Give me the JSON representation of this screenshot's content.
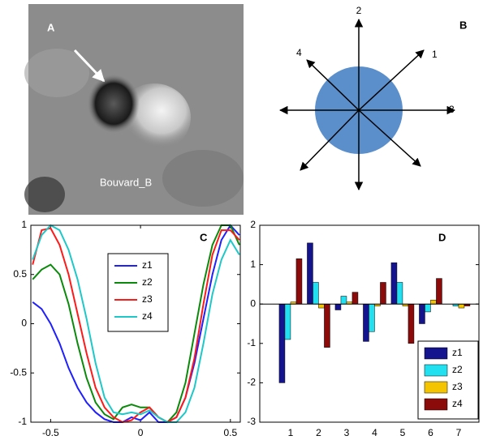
{
  "panel_a": {
    "label": "A",
    "caption": "Bouvard_B"
  },
  "panel_b": {
    "label": "B",
    "directions": [
      "1",
      "2",
      "3",
      "4"
    ]
  },
  "chart_data": [
    {
      "type": "line",
      "label": "C",
      "x": [
        -0.6,
        -0.55,
        -0.5,
        -0.45,
        -0.4,
        -0.35,
        -0.3,
        -0.25,
        -0.2,
        -0.15,
        -0.1,
        -0.05,
        0,
        0.05,
        0.1,
        0.15,
        0.2,
        0.25,
        0.3,
        0.35,
        0.4,
        0.45,
        0.5,
        0.55
      ],
      "series": [
        {
          "name": "z1",
          "color": "#1f1fff",
          "values": [
            0.22,
            0.15,
            0.0,
            -0.2,
            -0.45,
            -0.65,
            -0.8,
            -0.9,
            -0.97,
            -1,
            -1,
            -0.95,
            -0.98,
            -0.9,
            -1,
            -1,
            -0.95,
            -0.75,
            -0.4,
            0.05,
            0.5,
            0.85,
            1,
            0.9
          ]
        },
        {
          "name": "z2",
          "color": "#0a8a0a",
          "values": [
            0.45,
            0.55,
            0.6,
            0.5,
            0.2,
            -0.2,
            -0.55,
            -0.8,
            -0.92,
            -0.97,
            -0.85,
            -0.82,
            -0.85,
            -0.85,
            -0.95,
            -1,
            -0.9,
            -0.6,
            -0.1,
            0.4,
            0.8,
            1,
            1,
            0.8
          ]
        },
        {
          "name": "z3",
          "color": "#ff1a1a",
          "values": [
            0.6,
            0.95,
            0.97,
            0.8,
            0.5,
            0.1,
            -0.3,
            -0.65,
            -0.85,
            -0.95,
            -1,
            -0.98,
            -0.9,
            -0.85,
            -0.95,
            -1,
            -0.95,
            -0.75,
            -0.35,
            0.2,
            0.7,
            0.95,
            0.95,
            0.85
          ]
        },
        {
          "name": "z4",
          "color": "#1fc8c8",
          "values": [
            0.65,
            0.9,
            1,
            0.95,
            0.75,
            0.45,
            0.05,
            -0.4,
            -0.75,
            -0.9,
            -0.92,
            -0.9,
            -0.92,
            -0.88,
            -0.95,
            -1,
            -1,
            -0.9,
            -0.65,
            -0.2,
            0.3,
            0.65,
            0.85,
            0.7
          ]
        }
      ],
      "xlim": [
        -0.61,
        0.555
      ],
      "xticks": [
        -0.5,
        0,
        0.5
      ],
      "ylim": [
        -1,
        1
      ],
      "yticks": [
        -1,
        -0.5,
        0,
        0.5,
        1
      ]
    },
    {
      "type": "bar",
      "label": "D",
      "categories": [
        "1",
        "2",
        "3",
        "4",
        "5",
        "6",
        "7"
      ],
      "series": [
        {
          "name": "z1",
          "color": "#14148f",
          "values": [
            -2.0,
            1.55,
            -0.15,
            -0.95,
            1.05,
            -0.5,
            0
          ]
        },
        {
          "name": "z2",
          "color": "#22e0f0",
          "values": [
            -0.9,
            0.55,
            0.2,
            -0.7,
            0.55,
            -0.2,
            -0.05
          ]
        },
        {
          "name": "z3",
          "color": "#f5c400",
          "values": [
            0.05,
            -0.1,
            0.05,
            -0.05,
            -0.05,
            0.1,
            -0.1
          ]
        },
        {
          "name": "z4",
          "color": "#8b0a0a",
          "values": [
            1.15,
            -1.1,
            0.3,
            0.55,
            -1.0,
            0.65,
            -0.05
          ]
        }
      ],
      "ylim": [
        -3,
        2
      ],
      "yticks": [
        -3,
        -2,
        -1,
        0,
        1,
        2
      ]
    }
  ]
}
